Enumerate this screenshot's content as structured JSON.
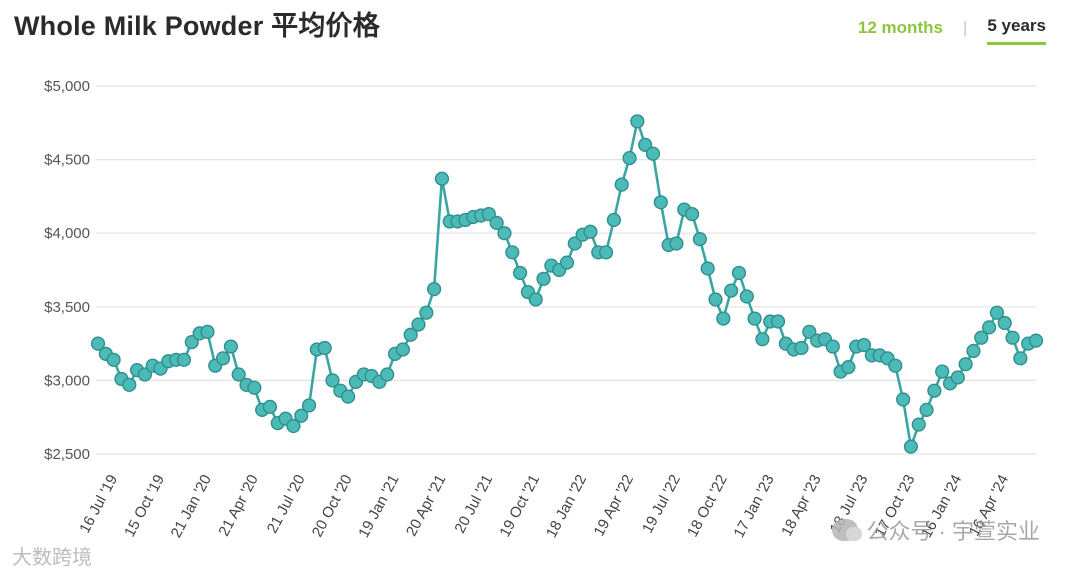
{
  "title": "Whole Milk Powder 平均价格",
  "tabs": [
    {
      "label": "12 months",
      "active": false
    },
    {
      "label": "5 years",
      "active": true
    }
  ],
  "watermarks": {
    "left": "大数跨境",
    "right": "公众号 · 宇萱实业"
  },
  "colors": {
    "line": "#3aa6a4",
    "marker_fill": "#4cbab6",
    "marker_stroke": "#2f8f8c",
    "grid": "#e3e3e3",
    "accent": "#8cc63f"
  },
  "chart_data": {
    "type": "line",
    "title": "Whole Milk Powder 平均价格",
    "xlabel": "",
    "ylabel": "",
    "ylim": [
      2500,
      5000
    ],
    "yticks": [
      "$2,500",
      "$3,000",
      "$3,500",
      "$4,000",
      "$4,500",
      "$5,000"
    ],
    "ytick_values": [
      2500,
      3000,
      3500,
      4000,
      4500,
      5000
    ],
    "xtick_labels": [
      "16 Jul '19",
      "15 Oct '19",
      "21 Jan '20",
      "21 Apr '20",
      "21 Jul '20",
      "20 Oct '20",
      "19 Jan '21",
      "20 Apr '21",
      "20 Jul '21",
      "19 Oct '21",
      "18 Jan '22",
      "19 Apr '22",
      "19 Jul '22",
      "18 Oct '22",
      "17 Jan '23",
      "18 Apr '23",
      "18 Jul '23",
      "17 Oct '23",
      "16 Jan '24",
      "16 Apr '24"
    ],
    "xtick_index": [
      2,
      8,
      14,
      20,
      26,
      32,
      38,
      44,
      50,
      56,
      62,
      68,
      74,
      80,
      86,
      92,
      98,
      104,
      110,
      116
    ],
    "grid": true,
    "series": [
      {
        "values": [
          3250,
          3180,
          3140,
          3010,
          2970,
          3070,
          3040,
          3100,
          3080,
          3130,
          3140,
          3140,
          3260,
          3320,
          3330,
          3100,
          3150,
          3230,
          3040,
          2970,
          2950,
          2800,
          2820,
          2710,
          2740,
          2690,
          2760,
          2830,
          3210,
          3220,
          3000,
          2930,
          2890,
          2990,
          3040,
          3030,
          2990,
          3040,
          3180,
          3210,
          3310,
          3380,
          3460,
          3620,
          4370,
          4080,
          4080,
          4090,
          4110,
          4120,
          4130,
          4070,
          4000,
          3870,
          3730,
          3600,
          3550,
          3690,
          3780,
          3750,
          3800,
          3930,
          3990,
          4010,
          3870,
          3870,
          4090,
          4330,
          4510,
          4760,
          4600,
          4540,
          4210,
          3920,
          3930,
          4160,
          4130,
          3960,
          3760,
          3550,
          3420,
          3610,
          3730,
          3570,
          3420,
          3280,
          3400,
          3400,
          3250,
          3210,
          3220,
          3330,
          3270,
          3280,
          3230,
          3060,
          3090,
          3230,
          3240,
          3170,
          3170,
          3150,
          3100,
          2870,
          2550,
          2700,
          2800,
          2930,
          3060,
          2980,
          3020,
          3110,
          3200,
          3290,
          3360,
          3460,
          3390,
          3290,
          3150,
          3250,
          3270
        ]
      }
    ]
  }
}
